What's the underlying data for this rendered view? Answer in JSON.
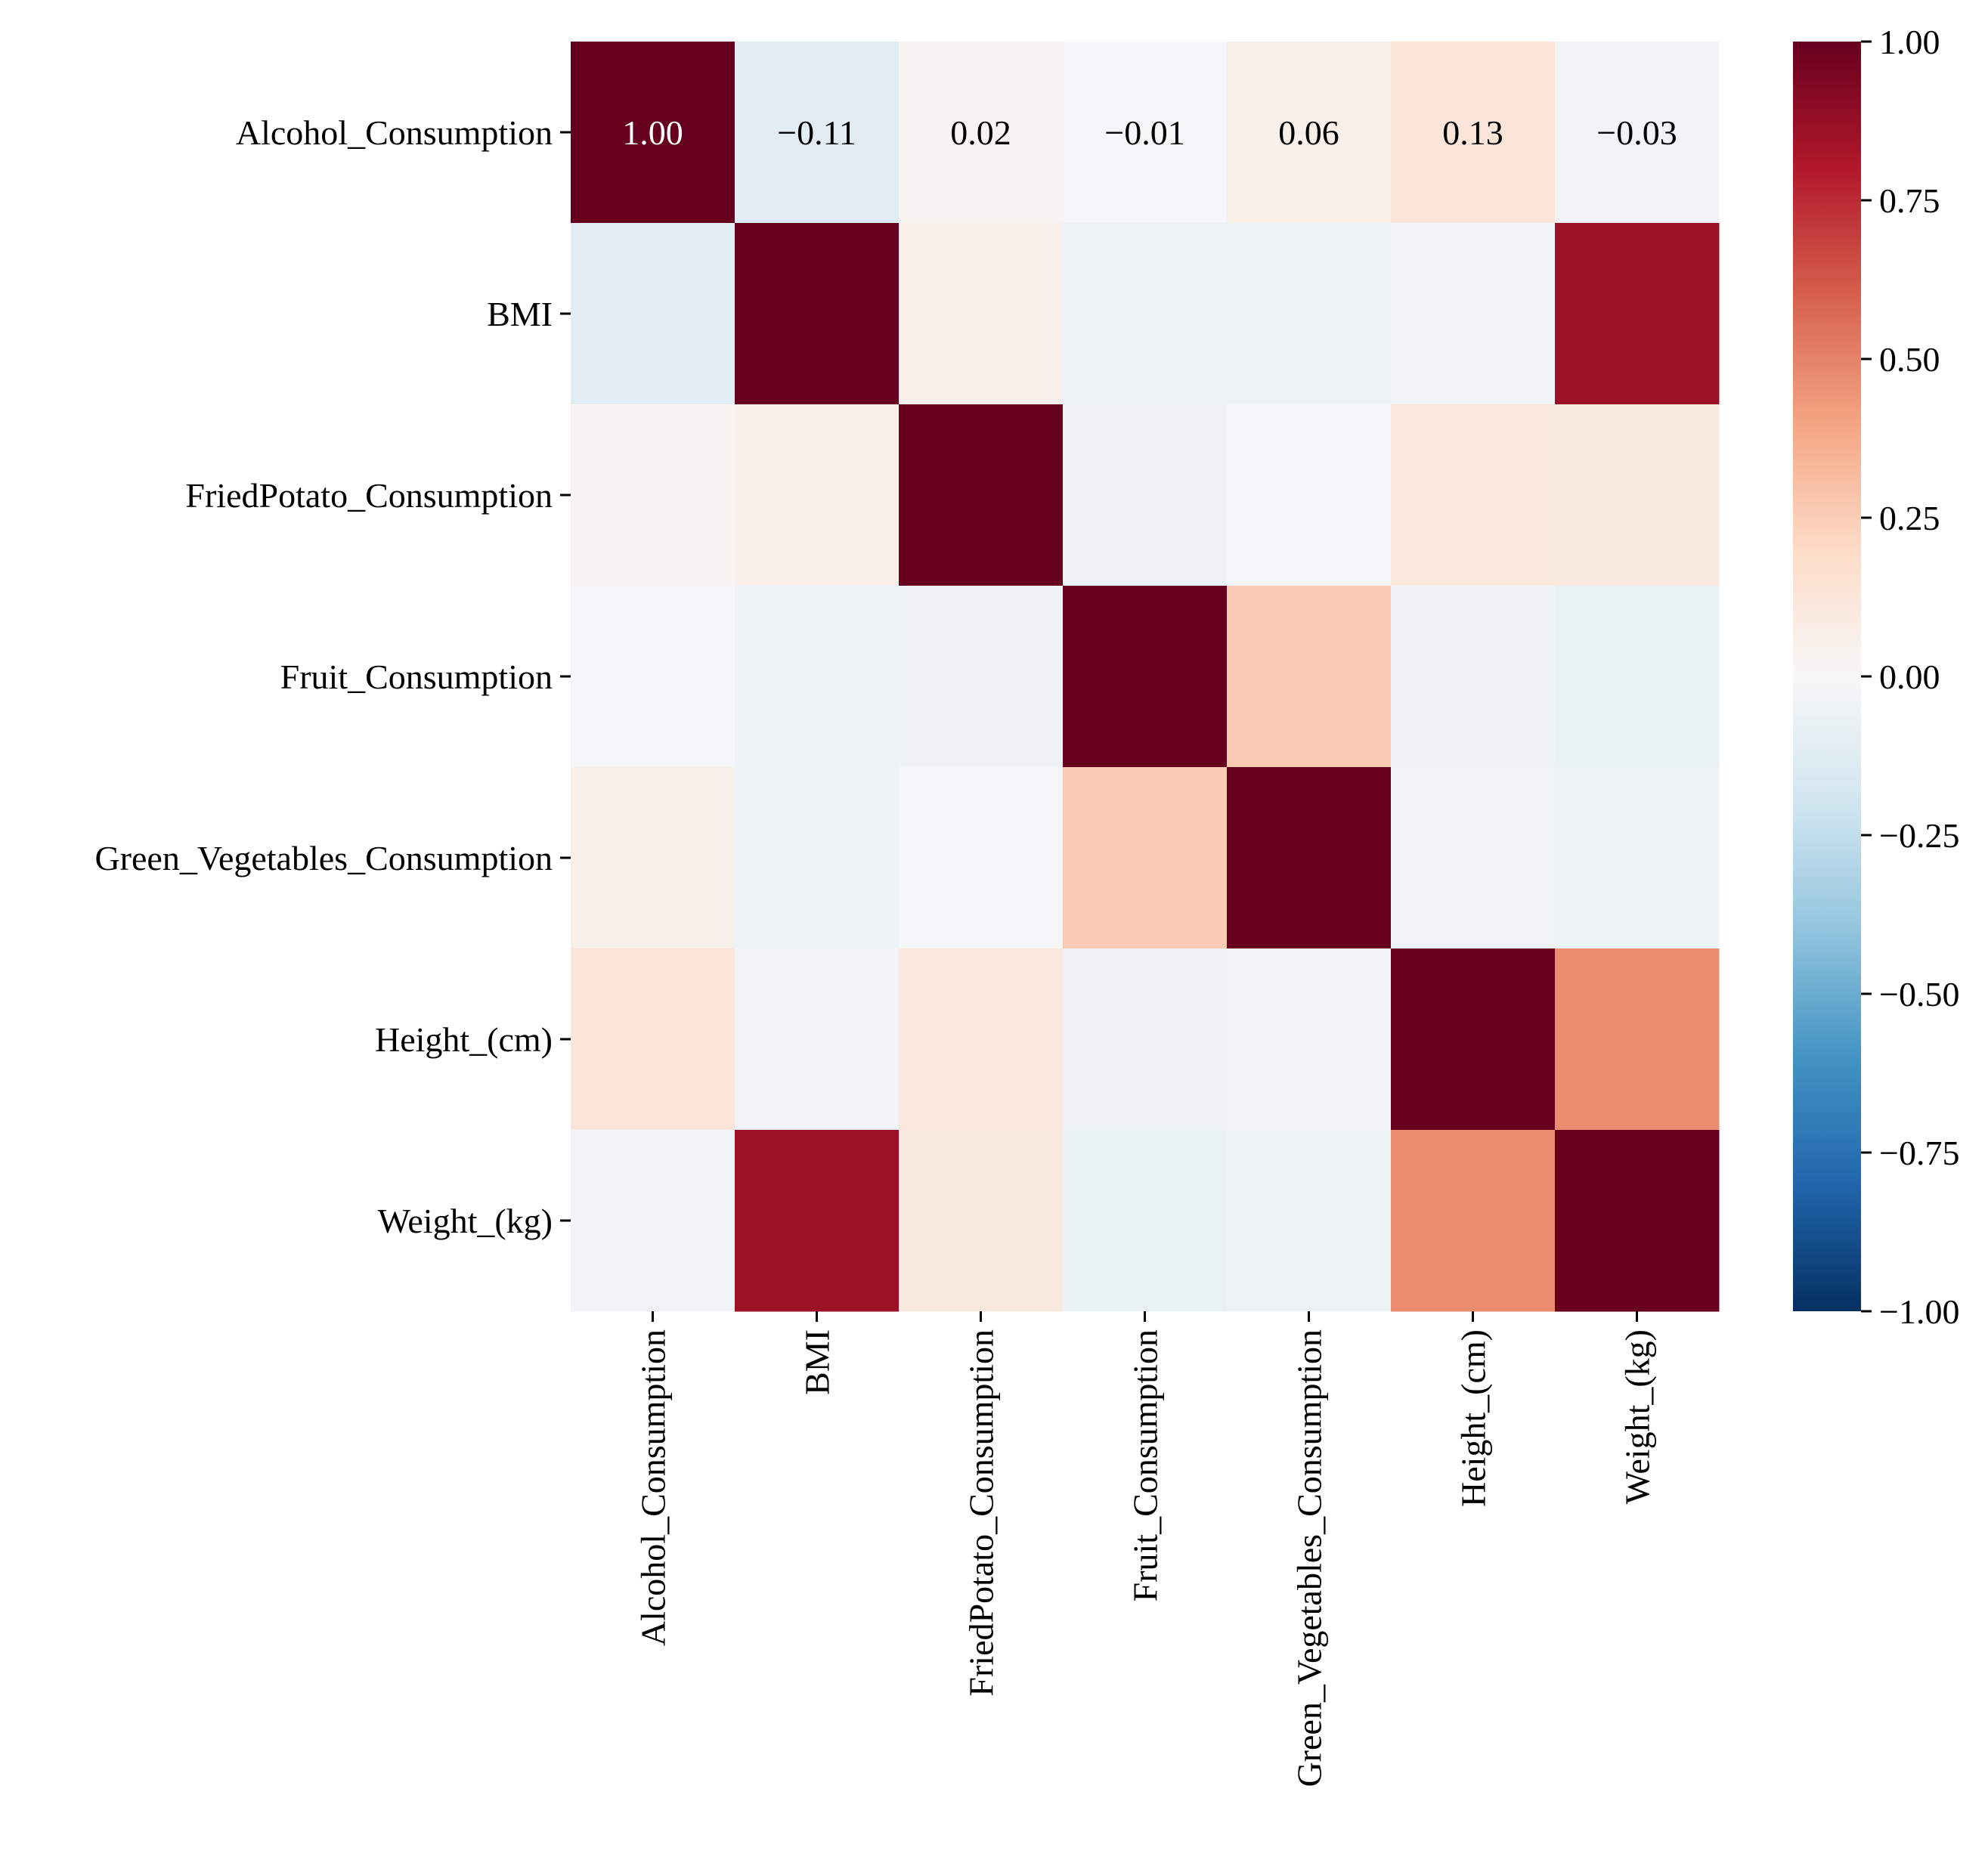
{
  "chart_data": {
    "type": "heatmap",
    "title": "",
    "xlabel": "",
    "ylabel": "",
    "rows": [
      "Alcohol_Consumption",
      "BMI",
      "FriedPotato_Consumption",
      "Fruit_Consumption",
      "Green_Vegetables_Consumption",
      "Height_(cm)",
      "Weight_(kg)"
    ],
    "columns": [
      "Alcohol_Consumption",
      "BMI",
      "FriedPotato_Consumption",
      "Fruit_Consumption",
      "Green_Vegetables_Consumption",
      "Height_(cm)",
      "Weight_(kg)"
    ],
    "values": [
      [
        1.0,
        -0.11,
        0.02,
        -0.01,
        0.06,
        0.13,
        -0.03
      ],
      [
        -0.11,
        1.0,
        0.05,
        -0.06,
        -0.05,
        -0.03,
        0.86
      ],
      [
        0.02,
        0.05,
        1.0,
        -0.04,
        -0.01,
        0.11,
        0.1
      ],
      [
        -0.01,
        -0.06,
        -0.04,
        1.0,
        0.26,
        -0.04,
        -0.07
      ],
      [
        0.06,
        -0.05,
        -0.01,
        0.26,
        1.0,
        -0.03,
        -0.05
      ],
      [
        0.13,
        -0.03,
        0.11,
        -0.04,
        -0.03,
        1.0,
        0.47
      ],
      [
        -0.03,
        0.86,
        0.1,
        -0.07,
        -0.05,
        0.47,
        1.0
      ]
    ],
    "annotated_row": 0,
    "annotations": [
      "1.00",
      "−0.11",
      "0.02",
      "−0.01",
      "0.06",
      "0.13",
      "−0.03"
    ],
    "colormap": "RdBu_r",
    "colormap_stops": [
      "#053061",
      "#2166ac",
      "#4393c3",
      "#92c5de",
      "#d1e5f0",
      "#f7f7f7",
      "#fddbc7",
      "#f4a582",
      "#d6604d",
      "#b2182b",
      "#67001f"
    ],
    "vmin": -1.0,
    "vmax": 1.0,
    "colorbar": {
      "ticks": [
        1.0,
        0.75,
        0.5,
        0.25,
        0.0,
        -0.25,
        -0.5,
        -0.75,
        -1.0
      ],
      "tick_labels": [
        "1.00",
        "0.75",
        "0.50",
        "0.25",
        "0.00",
        "−0.25",
        "−0.50",
        "−0.75",
        "−1.00"
      ]
    }
  }
}
